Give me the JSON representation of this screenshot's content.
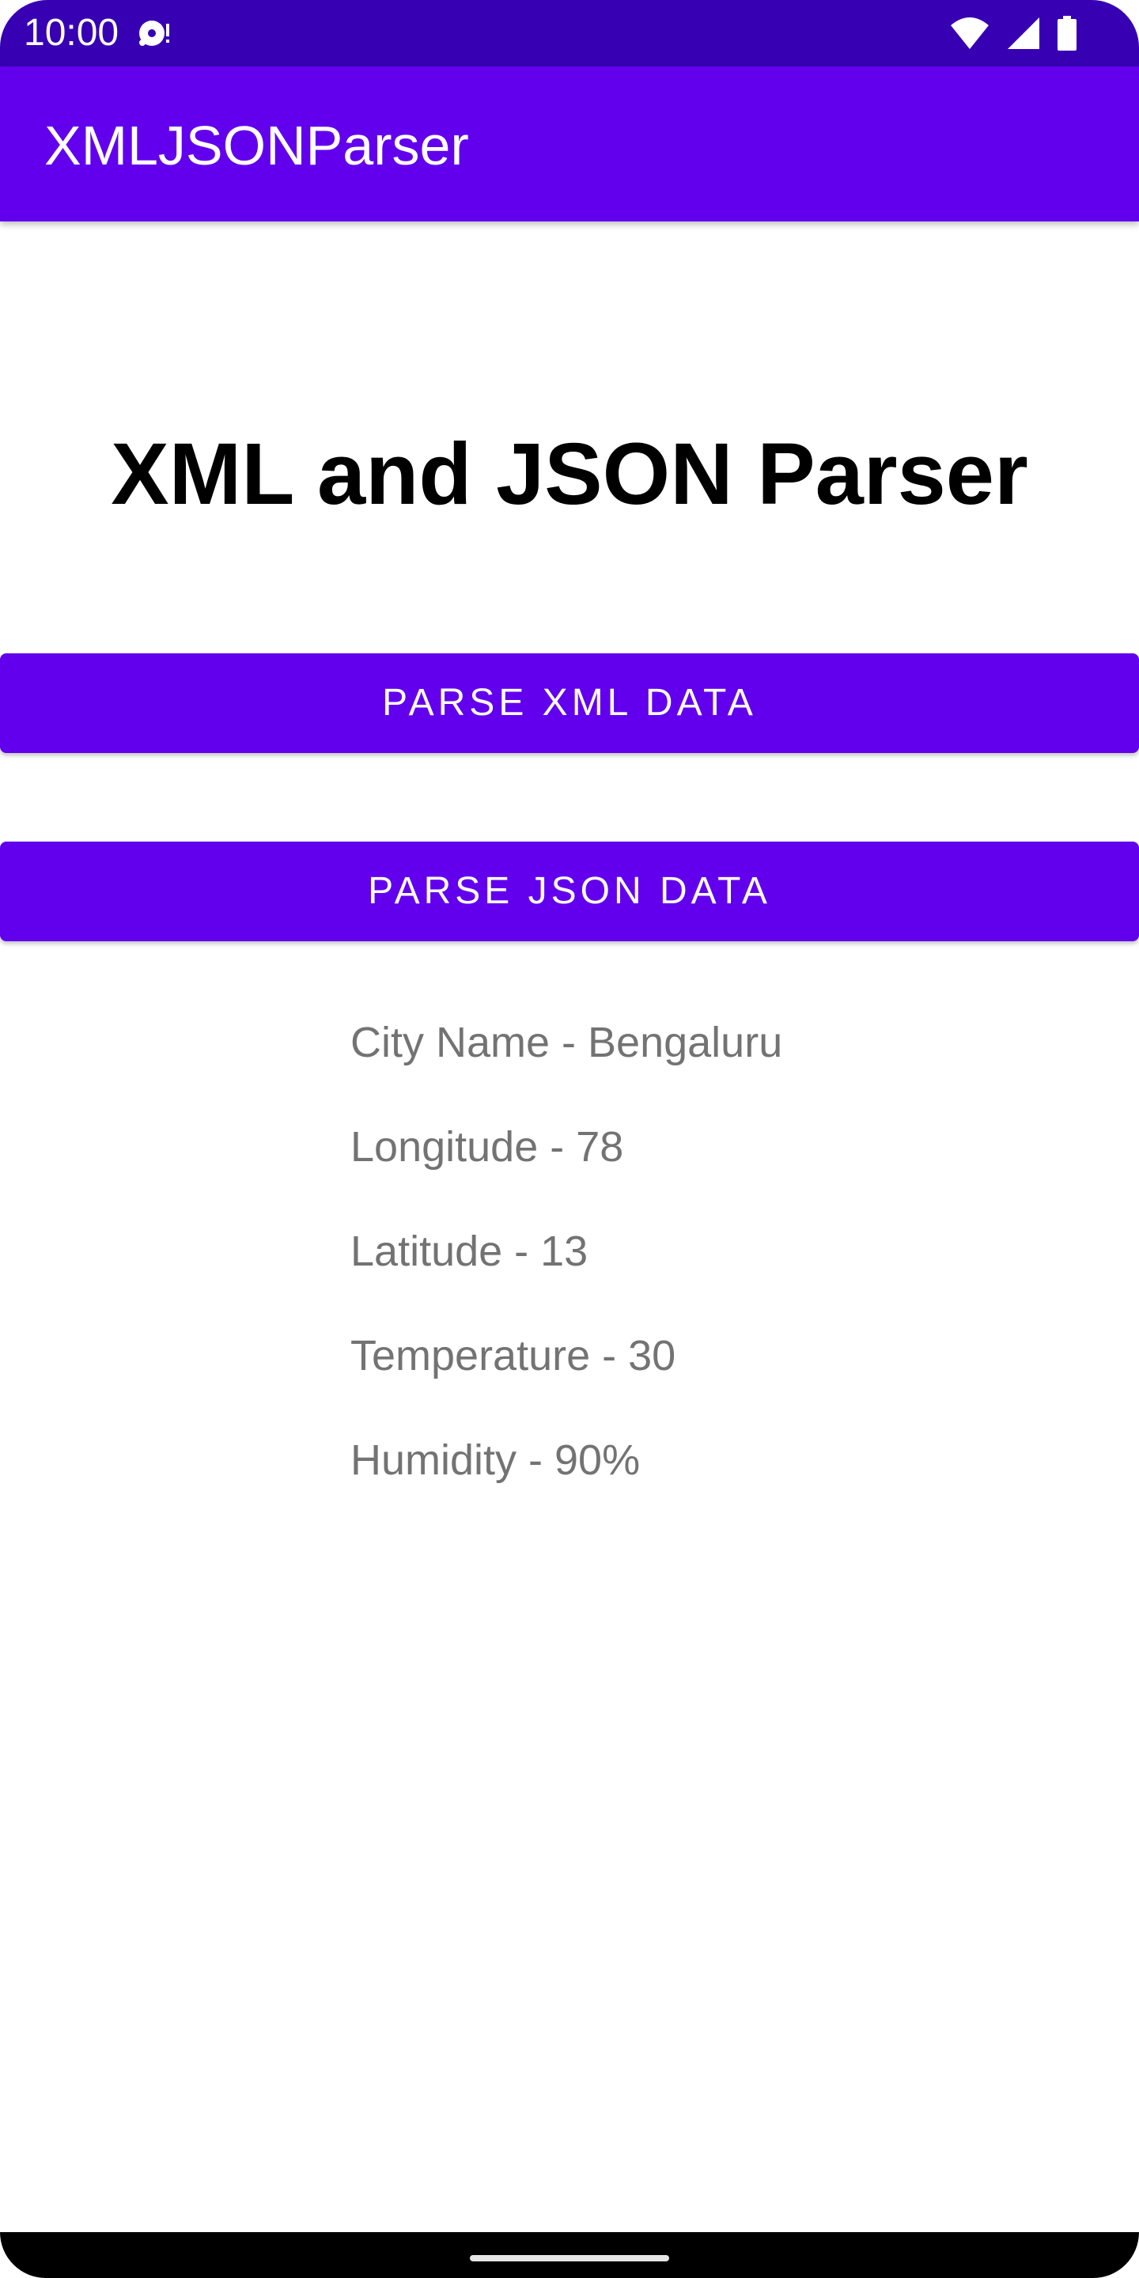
{
  "status_bar": {
    "time": "10:00",
    "icons": [
      "media-notification-icon",
      "wifi-icon",
      "signal-icon",
      "battery-icon"
    ],
    "background": "#3700b3"
  },
  "app_bar": {
    "title": "XMLJSONParser",
    "background": "#6200ee"
  },
  "main": {
    "heading": "XML and JSON Parser",
    "buttons": {
      "parse_xml": "PARSE XML DATA",
      "parse_json": "PARSE JSON DATA"
    },
    "results": [
      "City Name - Bengaluru",
      "Longitude - 78",
      "Latitude - 13",
      "Temperature - 30",
      "Humidity - 90%"
    ]
  },
  "colors": {
    "primary": "#6200ee",
    "primary_dark": "#3700b3",
    "result_text": "#737373"
  }
}
